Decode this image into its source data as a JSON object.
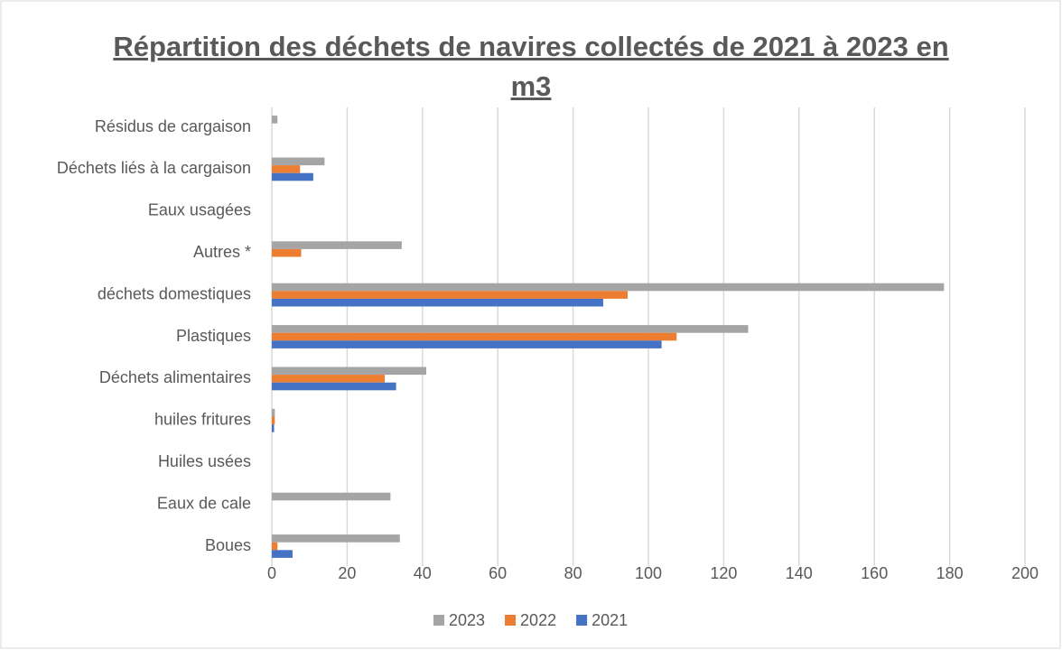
{
  "chart_data": {
    "type": "hbar",
    "title": "Répartition des déchets de navires collectés de 2021 à 2023 en m3",
    "categories": [
      "Résidus de cargaison",
      "Déchets liés à la cargaison",
      "Eaux usagées",
      "Autres *",
      "déchets domestiques",
      "Plastiques",
      "Déchets alimentaires",
      "huiles fritures",
      "Huiles usées",
      "Eaux de cale",
      "Boues"
    ],
    "series": [
      {
        "name": "2023",
        "color": "#a5a5a5",
        "values": [
          1.5,
          14,
          0,
          34.5,
          178.5,
          126.5,
          41,
          0.8,
          0,
          31.5,
          34
        ]
      },
      {
        "name": "2022",
        "color": "#ed7d31",
        "values": [
          0,
          7.5,
          0,
          7.8,
          94.5,
          107.5,
          30,
          0.8,
          0,
          0,
          1.5
        ]
      },
      {
        "name": "2021",
        "color": "#4472c4",
        "values": [
          0,
          11,
          0,
          0,
          88,
          103.5,
          33,
          0.6,
          0,
          0,
          5.5
        ]
      }
    ],
    "xlim": [
      0,
      200
    ],
    "xticks": [
      0,
      20,
      40,
      60,
      80,
      100,
      120,
      140,
      160,
      180,
      200
    ],
    "grid": true,
    "legend": "bottom"
  }
}
